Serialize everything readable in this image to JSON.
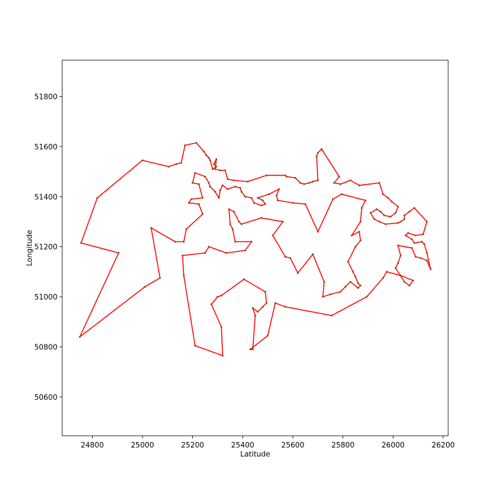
{
  "chart_data": {
    "type": "line",
    "title": "",
    "xlabel": "Latitude",
    "ylabel": "Longitude",
    "xlim": [
      24680,
      26220
    ],
    "ylim": [
      50445,
      51945
    ],
    "x_ticks": [
      24800,
      25000,
      25200,
      25400,
      25600,
      25800,
      26000,
      26200
    ],
    "y_ticks": [
      50600,
      50800,
      51000,
      51200,
      51400,
      51600,
      51800
    ],
    "grid": false,
    "line_color": "#ff0000",
    "marker_color": "#8b4513",
    "route": [
      [
        24750,
        50840
      ],
      [
        25010,
        51040
      ],
      [
        25070,
        51075
      ],
      [
        25035,
        51275
      ],
      [
        25130,
        51220
      ],
      [
        25165,
        51220
      ],
      [
        25175,
        51270
      ],
      [
        25240,
        51330
      ],
      [
        25225,
        51370
      ],
      [
        25185,
        51375
      ],
      [
        25195,
        51390
      ],
      [
        25240,
        51395
      ],
      [
        25225,
        51450
      ],
      [
        25200,
        51455
      ],
      [
        25210,
        51495
      ],
      [
        25250,
        51480
      ],
      [
        25265,
        51455
      ],
      [
        25270,
        51440
      ],
      [
        25290,
        51420
      ],
      [
        25305,
        51395
      ],
      [
        25310,
        51425
      ],
      [
        25320,
        51445
      ],
      [
        25340,
        51430
      ],
      [
        25370,
        51440
      ],
      [
        25390,
        51435
      ],
      [
        25395,
        51420
      ],
      [
        25410,
        51400
      ],
      [
        25435,
        51395
      ],
      [
        25445,
        51375
      ],
      [
        25475,
        51365
      ],
      [
        25490,
        51370
      ],
      [
        25480,
        51385
      ],
      [
        25460,
        51395
      ],
      [
        25505,
        51410
      ],
      [
        25545,
        51430
      ],
      [
        25535,
        51405
      ],
      [
        25540,
        51385
      ],
      [
        25600,
        51375
      ],
      [
        25650,
        51370
      ],
      [
        25700,
        51260
      ],
      [
        25760,
        51390
      ],
      [
        25795,
        51410
      ],
      [
        25890,
        51385
      ],
      [
        25875,
        51355
      ],
      [
        25870,
        51300
      ],
      [
        25835,
        51245
      ],
      [
        25865,
        51260
      ],
      [
        25870,
        51225
      ],
      [
        25850,
        51200
      ],
      [
        25820,
        51140
      ],
      [
        25840,
        51100
      ],
      [
        25850,
        51080
      ],
      [
        25860,
        51055
      ],
      [
        25870,
        51045
      ],
      [
        25860,
        51035
      ],
      [
        25830,
        51060
      ],
      [
        25810,
        51040
      ],
      [
        25790,
        51020
      ],
      [
        25750,
        51010
      ],
      [
        25720,
        51000
      ],
      [
        25725,
        51060
      ],
      [
        25680,
        51170
      ],
      [
        25620,
        51095
      ],
      [
        25590,
        51155
      ],
      [
        25570,
        51160
      ],
      [
        25520,
        51245
      ],
      [
        25560,
        51300
      ],
      [
        25475,
        51315
      ],
      [
        25395,
        51290
      ],
      [
        25385,
        51300
      ],
      [
        25365,
        51340
      ],
      [
        25345,
        51350
      ],
      [
        25350,
        51290
      ],
      [
        25360,
        51270
      ],
      [
        25370,
        51220
      ],
      [
        25435,
        51220
      ],
      [
        25410,
        51185
      ],
      [
        25335,
        51175
      ],
      [
        25265,
        51200
      ],
      [
        25250,
        51175
      ],
      [
        25160,
        51165
      ],
      [
        25165,
        51085
      ],
      [
        25210,
        50805
      ],
      [
        25320,
        50765
      ],
      [
        25315,
        50880
      ],
      [
        25275,
        50970
      ],
      [
        25300,
        51000
      ],
      [
        25315,
        51005
      ],
      [
        25405,
        51070
      ],
      [
        25490,
        51020
      ],
      [
        25495,
        50975
      ],
      [
        25480,
        50960
      ],
      [
        25460,
        50940
      ],
      [
        25440,
        50955
      ],
      [
        25450,
        50925
      ],
      [
        25440,
        50790
      ],
      [
        25430,
        50790
      ],
      [
        25500,
        50845
      ],
      [
        25530,
        50975
      ],
      [
        25570,
        50960
      ],
      [
        25755,
        50925
      ],
      [
        25895,
        51000
      ],
      [
        25960,
        51075
      ],
      [
        25975,
        51100
      ],
      [
        26030,
        51085
      ],
      [
        26080,
        51065
      ],
      [
        26065,
        51045
      ],
      [
        26045,
        51060
      ],
      [
        26010,
        51115
      ],
      [
        26020,
        51135
      ],
      [
        26030,
        51165
      ],
      [
        26020,
        51205
      ],
      [
        26075,
        51195
      ],
      [
        26090,
        51160
      ],
      [
        26110,
        51155
      ],
      [
        26135,
        51145
      ],
      [
        26150,
        51110
      ],
      [
        26135,
        51175
      ],
      [
        26125,
        51210
      ],
      [
        26115,
        51220
      ],
      [
        26085,
        51215
      ],
      [
        26075,
        51230
      ],
      [
        26050,
        51245
      ],
      [
        26060,
        51255
      ],
      [
        26090,
        51245
      ],
      [
        26120,
        51250
      ],
      [
        26135,
        51300
      ],
      [
        26085,
        51355
      ],
      [
        26065,
        51340
      ],
      [
        26045,
        51325
      ],
      [
        26045,
        51310
      ],
      [
        26030,
        51300
      ],
      [
        26020,
        51295
      ],
      [
        25970,
        51290
      ],
      [
        25945,
        51300
      ],
      [
        25925,
        51310
      ],
      [
        25910,
        51335
      ],
      [
        25935,
        51350
      ],
      [
        25950,
        51340
      ],
      [
        25965,
        51325
      ],
      [
        25990,
        51320
      ],
      [
        26010,
        51335
      ],
      [
        26020,
        51360
      ],
      [
        25995,
        51380
      ],
      [
        25980,
        51395
      ],
      [
        25960,
        51410
      ],
      [
        25945,
        51455
      ],
      [
        25865,
        51445
      ],
      [
        25830,
        51465
      ],
      [
        25790,
        51450
      ],
      [
        25765,
        51455
      ],
      [
        25785,
        51480
      ],
      [
        25715,
        51590
      ],
      [
        25700,
        51575
      ],
      [
        25695,
        51560
      ],
      [
        25700,
        51465
      ],
      [
        25680,
        51460
      ],
      [
        25665,
        51455
      ],
      [
        25645,
        51450
      ],
      [
        25630,
        51455
      ],
      [
        25610,
        51475
      ],
      [
        25575,
        51480
      ],
      [
        25570,
        51485
      ],
      [
        25495,
        51485
      ],
      [
        25420,
        51460
      ],
      [
        25365,
        51465
      ],
      [
        25340,
        51470
      ],
      [
        25330,
        51505
      ],
      [
        25310,
        51505
      ],
      [
        25290,
        51510
      ],
      [
        25295,
        51550
      ],
      [
        25285,
        51530
      ],
      [
        25295,
        51520
      ],
      [
        25280,
        51510
      ],
      [
        25270,
        51545
      ],
      [
        25265,
        51555
      ],
      [
        25255,
        51565
      ],
      [
        25245,
        51580
      ],
      [
        25215,
        51615
      ],
      [
        25170,
        51605
      ],
      [
        25155,
        51535
      ],
      [
        25135,
        51530
      ],
      [
        25105,
        51520
      ],
      [
        25000,
        51545
      ],
      [
        24820,
        51395
      ],
      [
        24755,
        51215
      ],
      [
        24905,
        51175
      ],
      [
        24750,
        50840
      ]
    ]
  }
}
